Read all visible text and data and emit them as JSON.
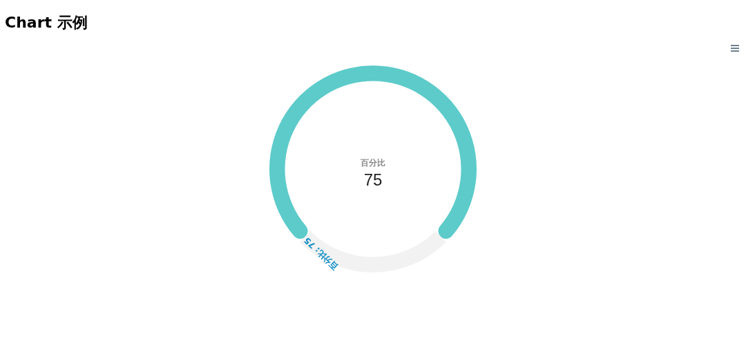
{
  "chart_data": {
    "type": "donut",
    "title": "Chart 示例",
    "categories": [
      "百分比",
      null
    ],
    "values": [
      75,
      25
    ],
    "colors": [
      "#5ccbca",
      "#f2f2f2"
    ],
    "value_labels": [
      "75",
      null
    ],
    "annotations": [
      "百分比: 75"
    ]
  }
}
